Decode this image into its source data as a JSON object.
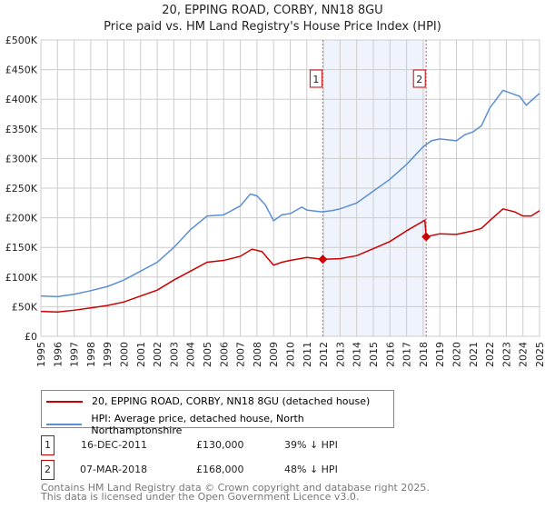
{
  "title": "20, EPPING ROAD, CORBY, NN18 8GU",
  "subtitle": "Price paid vs. HM Land Registry's House Price Index (HPI)",
  "chart_data": {
    "type": "line",
    "xlim": [
      1995,
      2025
    ],
    "ylim": [
      0,
      500000
    ],
    "yticks": [
      0,
      50000,
      100000,
      150000,
      200000,
      250000,
      300000,
      350000,
      400000,
      450000,
      500000
    ],
    "ytick_labels": [
      "£0",
      "£50K",
      "£100K",
      "£150K",
      "£200K",
      "£250K",
      "£300K",
      "£350K",
      "£400K",
      "£450K",
      "£500K"
    ],
    "xtick_labels": [
      "1995",
      "1996",
      "1997",
      "1998",
      "1999",
      "2000",
      "2001",
      "2002",
      "2003",
      "2004",
      "2005",
      "2006",
      "2007",
      "2008",
      "2009",
      "2010",
      "2011",
      "2012",
      "2013",
      "2014",
      "2015",
      "2016",
      "2017",
      "2018",
      "2019",
      "2020",
      "2021",
      "2022",
      "2023",
      "2024",
      "2025"
    ],
    "grid": true,
    "shaded_range": [
      2011.96,
      2018.18
    ],
    "series": [
      {
        "name": "20, EPPING ROAD, CORBY, NN18 8GU (detached house)",
        "color": "#cc0000",
        "x": [
          1995,
          1996,
          1997,
          1998,
          1999,
          2000,
          2001,
          2002,
          2003,
          2004,
          2005,
          2006,
          2007,
          2007.7,
          2008.3,
          2009,
          2009.5,
          2010,
          2011,
          2011.96,
          2013,
          2014,
          2015,
          2016,
          2017,
          2018.1,
          2018.18,
          2019,
          2020,
          2021,
          2021.5,
          2022,
          2022.8,
          2023.5,
          2024,
          2024.5,
          2025
        ],
        "y": [
          42000,
          41000,
          44000,
          48000,
          52000,
          58000,
          68000,
          78000,
          95000,
          110000,
          125000,
          128000,
          135000,
          147000,
          143000,
          120000,
          125000,
          128000,
          133000,
          130000,
          131000,
          136000,
          148000,
          160000,
          178000,
          196000,
          168000,
          173000,
          172000,
          178000,
          182000,
          195000,
          215000,
          210000,
          203000,
          203000,
          212000
        ]
      },
      {
        "name": "HPI: Average price, detached house, North Northamptonshire",
        "color": "#5b8fd4",
        "x": [
          1995,
          1996,
          1997,
          1998,
          1999,
          2000,
          2001,
          2002,
          2003,
          2004,
          2005,
          2006,
          2007,
          2007.6,
          2008,
          2008.5,
          2009,
          2009.5,
          2010,
          2010.7,
          2011,
          2011.9,
          2012.5,
          2013,
          2014,
          2015,
          2016,
          2017,
          2018,
          2018.5,
          2019,
          2020,
          2020.5,
          2021,
          2021.5,
          2022,
          2022.8,
          2023.3,
          2023.8,
          2024.2,
          2024.8,
          2025
        ],
        "y": [
          68000,
          67000,
          71000,
          77000,
          84000,
          95000,
          110000,
          125000,
          150000,
          180000,
          203000,
          205000,
          220000,
          240000,
          237000,
          222000,
          195000,
          205000,
          207000,
          218000,
          213000,
          210000,
          212000,
          215000,
          225000,
          245000,
          265000,
          290000,
          320000,
          330000,
          333000,
          330000,
          340000,
          345000,
          355000,
          385000,
          415000,
          410000,
          405000,
          390000,
          405000,
          410000
        ]
      }
    ],
    "markers": [
      {
        "label": "1",
        "x": 2011.96,
        "y": 130000
      },
      {
        "label": "2",
        "x": 2018.18,
        "y": 168000
      }
    ]
  },
  "transactions": [
    {
      "num": "1",
      "date": "16-DEC-2011",
      "price": "£130,000",
      "hpi": "39% ↓ HPI"
    },
    {
      "num": "2",
      "date": "07-MAR-2018",
      "price": "£168,000",
      "hpi": "48% ↓ HPI"
    }
  ],
  "footer": [
    "Contains HM Land Registry data © Crown copyright and database right 2025.",
    "This data is licensed under the Open Government Licence v3.0."
  ]
}
